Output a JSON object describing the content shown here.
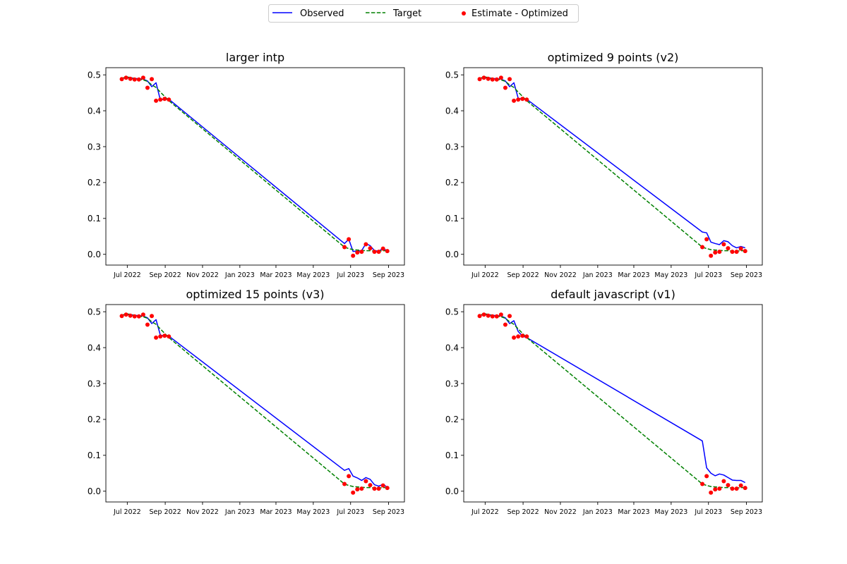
{
  "legend": {
    "placement": "top-center",
    "entries": [
      {
        "label": "Observed",
        "style": "solid-line",
        "color": "#0000ff"
      },
      {
        "label": "Target",
        "style": "dashed-line",
        "color": "#008000"
      },
      {
        "label": "Estimate - Optimized",
        "style": "dot",
        "color": "#ff0000"
      }
    ]
  },
  "chart_data": [
    {
      "type": "line",
      "title": "larger intp",
      "xlabel": "",
      "ylabel": "",
      "xlim": [
        "2022-05-27",
        "2023-09-27"
      ],
      "ylim": [
        -0.03,
        0.52
      ],
      "xticks": [
        {
          "date": "2022-07-01",
          "label": "Jul 2022"
        },
        {
          "date": "2022-09-01",
          "label": "Sep 2022"
        },
        {
          "date": "2022-11-01",
          "label": "Nov 2022"
        },
        {
          "date": "2023-01-01",
          "label": "Jan 2023"
        },
        {
          "date": "2023-03-01",
          "label": "Mar 2023"
        },
        {
          "date": "2023-05-01",
          "label": "May 2023"
        },
        {
          "date": "2023-07-01",
          "label": "Jul 2023"
        },
        {
          "date": "2023-09-01",
          "label": "Sep 2023"
        }
      ],
      "yticks": [
        "0.0",
        "0.1",
        "0.2",
        "0.3",
        "0.4",
        "0.5"
      ],
      "grid": false,
      "series": [
        {
          "name": "Observed",
          "color": "#0000ff",
          "style": "solid",
          "x": [
            "2022-06-22",
            "2022-06-29",
            "2022-07-06",
            "2022-07-13",
            "2022-07-20",
            "2022-07-27",
            "2022-08-03",
            "2022-08-10",
            "2022-08-17",
            "2022-08-24",
            "2022-08-31",
            "2022-09-07",
            "2023-06-21",
            "2023-06-28",
            "2023-07-05",
            "2023-07-12",
            "2023-07-19",
            "2023-07-26",
            "2023-08-02",
            "2023-08-09",
            "2023-08-16",
            "2023-08-23",
            "2023-08-30"
          ],
          "y": [
            0.49,
            0.492,
            0.492,
            0.49,
            0.489,
            0.488,
            0.483,
            0.467,
            0.478,
            0.43,
            0.432,
            0.432,
            0.03,
            0.042,
            0.008,
            0.009,
            0.01,
            0.03,
            0.024,
            0.01,
            0.009,
            0.016,
            0.01
          ]
        },
        {
          "name": "Target",
          "color": "#008000",
          "style": "dashed",
          "x": [
            "2022-06-22",
            "2022-06-29",
            "2022-07-06",
            "2022-07-13",
            "2022-07-20",
            "2022-07-27",
            "2022-08-03",
            "2022-08-10",
            "2022-08-17",
            "2022-08-24",
            "2022-08-31",
            "2022-09-07",
            "2023-06-21",
            "2023-06-28",
            "2023-07-05",
            "2023-07-12",
            "2023-07-19",
            "2023-07-26",
            "2023-08-02",
            "2023-08-09",
            "2023-08-16",
            "2023-08-23",
            "2023-08-30"
          ],
          "y": [
            0.49,
            0.494,
            0.493,
            0.49,
            0.488,
            0.486,
            0.482,
            0.472,
            0.465,
            0.452,
            0.44,
            0.428,
            0.02,
            0.016,
            0.013,
            0.012,
            0.011,
            0.01,
            0.01,
            0.009,
            0.009,
            0.01,
            0.01
          ]
        },
        {
          "name": "Estimate - Optimized",
          "color": "#ff0000",
          "style": "dots",
          "x": [
            "2022-06-22",
            "2022-06-29",
            "2022-07-06",
            "2022-07-13",
            "2022-07-20",
            "2022-07-27",
            "2022-08-03",
            "2022-08-10",
            "2022-08-17",
            "2022-08-24",
            "2022-08-31",
            "2022-09-07",
            "2023-06-21",
            "2023-06-28",
            "2023-07-05",
            "2023-07-12",
            "2023-07-19",
            "2023-07-26",
            "2023-08-02",
            "2023-08-09",
            "2023-08-16",
            "2023-08-23",
            "2023-08-30"
          ],
          "y": [
            0.488,
            0.492,
            0.489,
            0.487,
            0.487,
            0.492,
            0.464,
            0.488,
            0.428,
            0.431,
            0.433,
            0.431,
            0.02,
            0.042,
            -0.004,
            0.005,
            0.007,
            0.028,
            0.017,
            0.007,
            0.007,
            0.016,
            0.009
          ]
        }
      ]
    },
    {
      "type": "line",
      "title": "optimized 9 points (v2)",
      "xlabel": "",
      "ylabel": "",
      "xlim": [
        "2022-05-27",
        "2023-09-27"
      ],
      "ylim": [
        -0.03,
        0.52
      ],
      "xticks": [
        {
          "date": "2022-07-01",
          "label": "Jul 2022"
        },
        {
          "date": "2022-09-01",
          "label": "Sep 2022"
        },
        {
          "date": "2022-11-01",
          "label": "Nov 2022"
        },
        {
          "date": "2023-01-01",
          "label": "Jan 2023"
        },
        {
          "date": "2023-03-01",
          "label": "Mar 2023"
        },
        {
          "date": "2023-05-01",
          "label": "May 2023"
        },
        {
          "date": "2023-07-01",
          "label": "Jul 2023"
        },
        {
          "date": "2023-09-01",
          "label": "Sep 2023"
        }
      ],
      "yticks": [
        "0.0",
        "0.1",
        "0.2",
        "0.3",
        "0.4",
        "0.5"
      ],
      "grid": false,
      "series": [
        {
          "name": "Observed",
          "color": "#0000ff",
          "style": "solid",
          "x": [
            "2022-06-22",
            "2022-06-29",
            "2022-07-06",
            "2022-07-13",
            "2022-07-20",
            "2022-07-27",
            "2022-08-03",
            "2022-08-10",
            "2022-08-17",
            "2022-08-24",
            "2022-08-31",
            "2022-09-07",
            "2023-06-21",
            "2023-06-28",
            "2023-07-05",
            "2023-07-12",
            "2023-07-19",
            "2023-07-26",
            "2023-08-02",
            "2023-08-09",
            "2023-08-16",
            "2023-08-23",
            "2023-08-30"
          ],
          "y": [
            0.49,
            0.492,
            0.492,
            0.49,
            0.489,
            0.488,
            0.483,
            0.467,
            0.478,
            0.435,
            0.432,
            0.432,
            0.062,
            0.06,
            0.034,
            0.03,
            0.027,
            0.038,
            0.035,
            0.024,
            0.018,
            0.022,
            0.018
          ]
        },
        {
          "name": "Target",
          "color": "#008000",
          "style": "dashed",
          "x": [
            "2022-06-22",
            "2022-06-29",
            "2022-07-06",
            "2022-07-13",
            "2022-07-20",
            "2022-07-27",
            "2022-08-03",
            "2022-08-10",
            "2022-08-17",
            "2022-08-24",
            "2022-08-31",
            "2022-09-07",
            "2023-06-21",
            "2023-06-28",
            "2023-07-05",
            "2023-07-12",
            "2023-07-19",
            "2023-07-26",
            "2023-08-02",
            "2023-08-09",
            "2023-08-16",
            "2023-08-23",
            "2023-08-30"
          ],
          "y": [
            0.49,
            0.494,
            0.493,
            0.49,
            0.488,
            0.486,
            0.482,
            0.472,
            0.465,
            0.452,
            0.44,
            0.428,
            0.02,
            0.016,
            0.013,
            0.012,
            0.011,
            0.01,
            0.01,
            0.009,
            0.009,
            0.01,
            0.01
          ]
        },
        {
          "name": "Estimate - Optimized",
          "color": "#ff0000",
          "style": "dots",
          "x": [
            "2022-06-22",
            "2022-06-29",
            "2022-07-06",
            "2022-07-13",
            "2022-07-20",
            "2022-07-27",
            "2022-08-03",
            "2022-08-10",
            "2022-08-17",
            "2022-08-24",
            "2022-08-31",
            "2022-09-07",
            "2023-06-21",
            "2023-06-28",
            "2023-07-05",
            "2023-07-12",
            "2023-07-19",
            "2023-07-26",
            "2023-08-02",
            "2023-08-09",
            "2023-08-16",
            "2023-08-23",
            "2023-08-30"
          ],
          "y": [
            0.488,
            0.492,
            0.489,
            0.487,
            0.487,
            0.492,
            0.464,
            0.488,
            0.428,
            0.431,
            0.433,
            0.431,
            0.02,
            0.042,
            -0.004,
            0.005,
            0.007,
            0.028,
            0.017,
            0.007,
            0.007,
            0.016,
            0.009
          ]
        }
      ]
    },
    {
      "type": "line",
      "title": "optimized 15 points (v3)",
      "xlabel": "",
      "ylabel": "",
      "xlim": [
        "2022-05-27",
        "2023-09-27"
      ],
      "ylim": [
        -0.03,
        0.52
      ],
      "xticks": [
        {
          "date": "2022-07-01",
          "label": "Jul 2022"
        },
        {
          "date": "2022-09-01",
          "label": "Sep 2022"
        },
        {
          "date": "2022-11-01",
          "label": "Nov 2022"
        },
        {
          "date": "2023-01-01",
          "label": "Jan 2023"
        },
        {
          "date": "2023-03-01",
          "label": "Mar 2023"
        },
        {
          "date": "2023-05-01",
          "label": "May 2023"
        },
        {
          "date": "2023-07-01",
          "label": "Jul 2023"
        },
        {
          "date": "2023-09-01",
          "label": "Sep 2023"
        }
      ],
      "yticks": [
        "0.0",
        "0.1",
        "0.2",
        "0.3",
        "0.4",
        "0.5"
      ],
      "grid": false,
      "series": [
        {
          "name": "Observed",
          "color": "#0000ff",
          "style": "solid",
          "x": [
            "2022-06-22",
            "2022-06-29",
            "2022-07-06",
            "2022-07-13",
            "2022-07-20",
            "2022-07-27",
            "2022-08-03",
            "2022-08-10",
            "2022-08-17",
            "2022-08-24",
            "2022-08-31",
            "2022-09-07",
            "2023-06-21",
            "2023-06-28",
            "2023-07-05",
            "2023-07-12",
            "2023-07-19",
            "2023-07-26",
            "2023-08-02",
            "2023-08-09",
            "2023-08-16",
            "2023-08-23",
            "2023-08-30"
          ],
          "y": [
            0.49,
            0.492,
            0.492,
            0.49,
            0.489,
            0.488,
            0.483,
            0.467,
            0.478,
            0.435,
            0.432,
            0.432,
            0.058,
            0.063,
            0.042,
            0.037,
            0.03,
            0.038,
            0.033,
            0.018,
            0.014,
            0.019,
            0.011
          ]
        },
        {
          "name": "Target",
          "color": "#008000",
          "style": "dashed",
          "x": [
            "2022-06-22",
            "2022-06-29",
            "2022-07-06",
            "2022-07-13",
            "2022-07-20",
            "2022-07-27",
            "2022-08-03",
            "2022-08-10",
            "2022-08-17",
            "2022-08-24",
            "2022-08-31",
            "2022-09-07",
            "2023-06-21",
            "2023-06-28",
            "2023-07-05",
            "2023-07-12",
            "2023-07-19",
            "2023-07-26",
            "2023-08-02",
            "2023-08-09",
            "2023-08-16",
            "2023-08-23",
            "2023-08-30"
          ],
          "y": [
            0.49,
            0.494,
            0.493,
            0.49,
            0.488,
            0.486,
            0.482,
            0.472,
            0.465,
            0.452,
            0.44,
            0.428,
            0.02,
            0.016,
            0.013,
            0.012,
            0.011,
            0.01,
            0.01,
            0.009,
            0.009,
            0.01,
            0.01
          ]
        },
        {
          "name": "Estimate - Optimized",
          "color": "#ff0000",
          "style": "dots",
          "x": [
            "2022-06-22",
            "2022-06-29",
            "2022-07-06",
            "2022-07-13",
            "2022-07-20",
            "2022-07-27",
            "2022-08-03",
            "2022-08-10",
            "2022-08-17",
            "2022-08-24",
            "2022-08-31",
            "2022-09-07",
            "2023-06-21",
            "2023-06-28",
            "2023-07-05",
            "2023-07-12",
            "2023-07-19",
            "2023-07-26",
            "2023-08-02",
            "2023-08-09",
            "2023-08-16",
            "2023-08-23",
            "2023-08-30"
          ],
          "y": [
            0.488,
            0.492,
            0.489,
            0.487,
            0.487,
            0.492,
            0.464,
            0.488,
            0.428,
            0.431,
            0.433,
            0.431,
            0.02,
            0.042,
            -0.004,
            0.005,
            0.007,
            0.028,
            0.017,
            0.007,
            0.007,
            0.016,
            0.009
          ]
        }
      ]
    },
    {
      "type": "line",
      "title": "default javascript (v1)",
      "xlabel": "",
      "ylabel": "",
      "xlim": [
        "2022-05-27",
        "2023-09-27"
      ],
      "ylim": [
        -0.03,
        0.52
      ],
      "xticks": [
        {
          "date": "2022-07-01",
          "label": "Jul 2022"
        },
        {
          "date": "2022-09-01",
          "label": "Sep 2022"
        },
        {
          "date": "2022-11-01",
          "label": "Nov 2022"
        },
        {
          "date": "2023-01-01",
          "label": "Jan 2023"
        },
        {
          "date": "2023-03-01",
          "label": "Mar 2023"
        },
        {
          "date": "2023-05-01",
          "label": "May 2023"
        },
        {
          "date": "2023-07-01",
          "label": "Jul 2023"
        },
        {
          "date": "2023-09-01",
          "label": "Sep 2023"
        }
      ],
      "yticks": [
        "0.0",
        "0.1",
        "0.2",
        "0.3",
        "0.4",
        "0.5"
      ],
      "grid": false,
      "series": [
        {
          "name": "Observed",
          "color": "#0000ff",
          "style": "solid",
          "x": [
            "2022-06-22",
            "2022-06-29",
            "2022-07-06",
            "2022-07-13",
            "2022-07-20",
            "2022-07-27",
            "2022-08-03",
            "2022-08-10",
            "2022-08-17",
            "2022-08-24",
            "2022-08-31",
            "2022-09-07",
            "2023-06-21",
            "2023-06-28",
            "2023-07-05",
            "2023-07-12",
            "2023-07-19",
            "2023-07-26",
            "2023-08-02",
            "2023-08-09",
            "2023-08-16",
            "2023-08-23",
            "2023-08-30"
          ],
          "y": [
            0.49,
            0.492,
            0.492,
            0.49,
            0.489,
            0.488,
            0.483,
            0.467,
            0.475,
            0.445,
            0.432,
            0.428,
            0.14,
            0.065,
            0.05,
            0.043,
            0.048,
            0.045,
            0.038,
            0.031,
            0.03,
            0.03,
            0.024
          ]
        },
        {
          "name": "Target",
          "color": "#008000",
          "style": "dashed",
          "x": [
            "2022-06-22",
            "2022-06-29",
            "2022-07-06",
            "2022-07-13",
            "2022-07-20",
            "2022-07-27",
            "2022-08-03",
            "2022-08-10",
            "2022-08-17",
            "2022-08-24",
            "2022-08-31",
            "2022-09-07",
            "2023-06-21",
            "2023-06-28",
            "2023-07-05",
            "2023-07-12",
            "2023-07-19",
            "2023-07-26",
            "2023-08-02",
            "2023-08-09",
            "2023-08-16",
            "2023-08-23",
            "2023-08-30"
          ],
          "y": [
            0.49,
            0.494,
            0.493,
            0.49,
            0.488,
            0.486,
            0.482,
            0.472,
            0.465,
            0.452,
            0.44,
            0.428,
            0.02,
            0.016,
            0.013,
            0.012,
            0.011,
            0.01,
            0.01,
            0.009,
            0.009,
            0.01,
            0.01
          ]
        },
        {
          "name": "Estimate - Optimized",
          "color": "#ff0000",
          "style": "dots",
          "x": [
            "2022-06-22",
            "2022-06-29",
            "2022-07-06",
            "2022-07-13",
            "2022-07-20",
            "2022-07-27",
            "2022-08-03",
            "2022-08-10",
            "2022-08-17",
            "2022-08-24",
            "2022-08-31",
            "2022-09-07",
            "2023-06-21",
            "2023-06-28",
            "2023-07-05",
            "2023-07-12",
            "2023-07-19",
            "2023-07-26",
            "2023-08-02",
            "2023-08-09",
            "2023-08-16",
            "2023-08-23",
            "2023-08-30"
          ],
          "y": [
            0.488,
            0.492,
            0.489,
            0.487,
            0.487,
            0.492,
            0.464,
            0.488,
            0.428,
            0.431,
            0.433,
            0.431,
            0.02,
            0.042,
            -0.004,
            0.005,
            0.007,
            0.028,
            0.017,
            0.007,
            0.007,
            0.016,
            0.009
          ]
        }
      ]
    }
  ]
}
